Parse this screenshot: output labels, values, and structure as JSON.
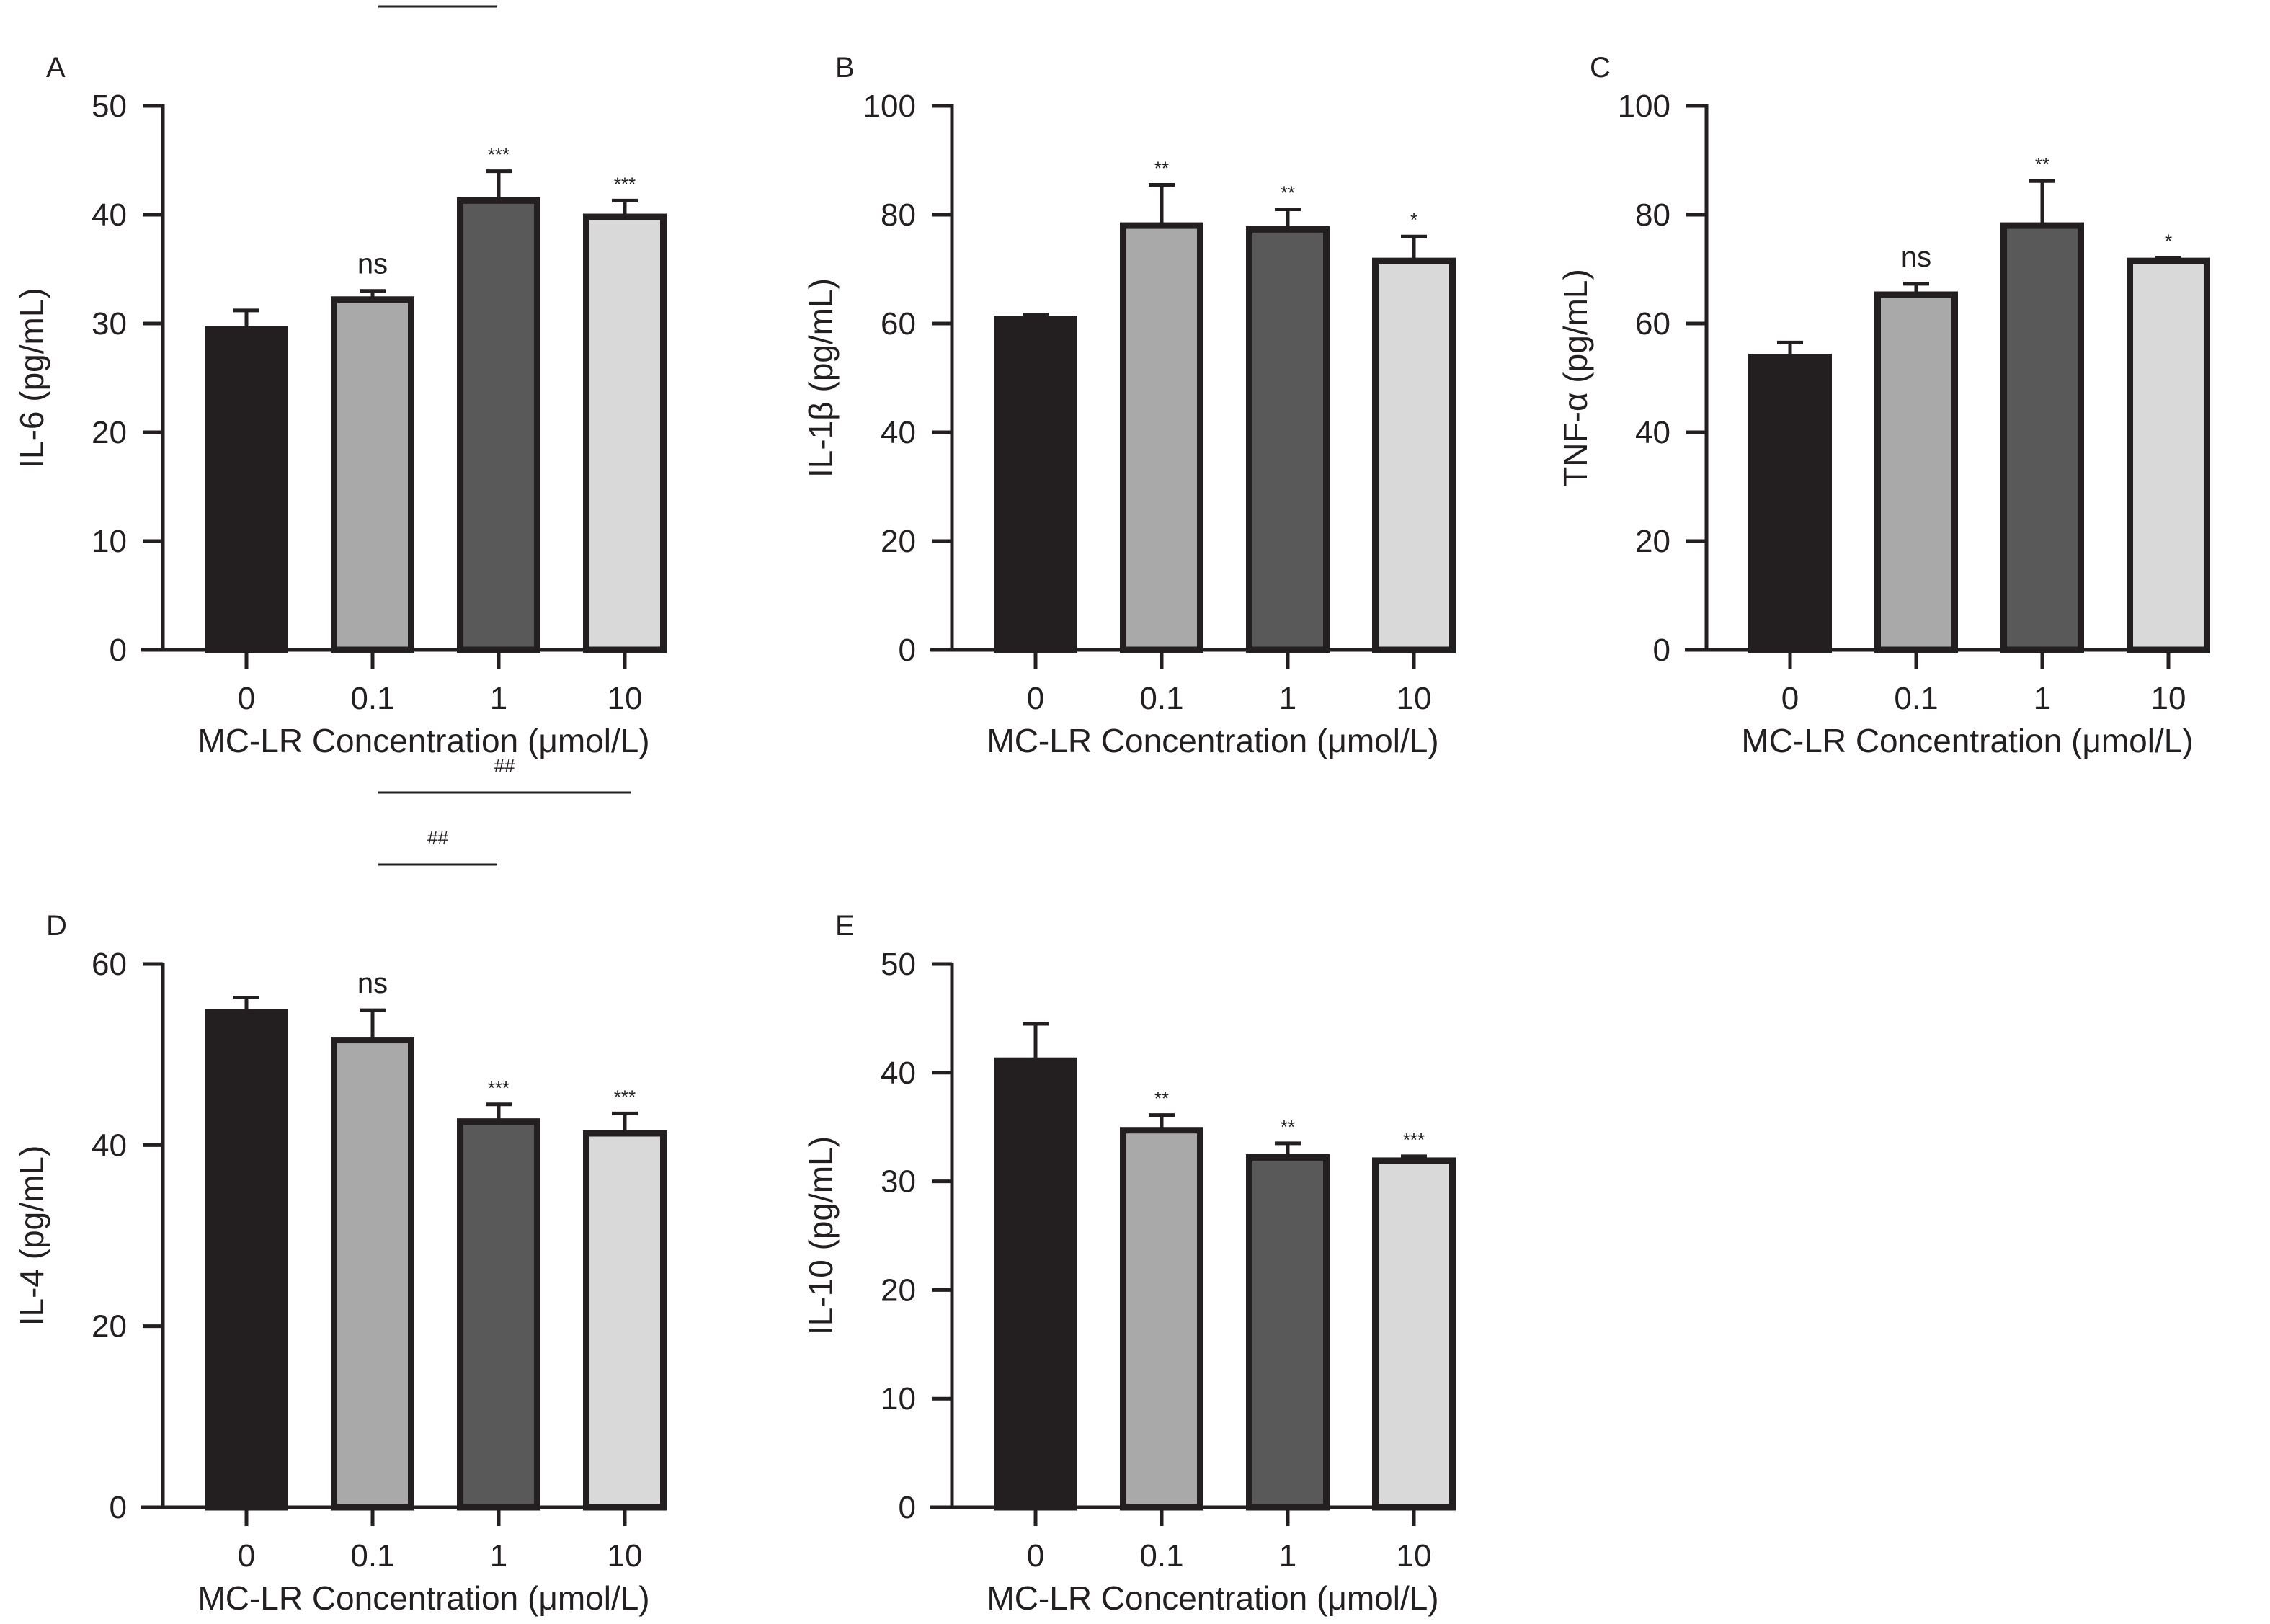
{
  "colors": {
    "axis": "#231f20",
    "bar_outline": "#231f20",
    "bar_fills": [
      "#231f20",
      "#aaa9a9",
      "#5a595a",
      "#d9d9d9"
    ]
  },
  "chart_data": [
    {
      "panel": "A",
      "type": "bar",
      "categories": [
        "0",
        "0.1",
        "1",
        "10"
      ],
      "values": [
        29.5,
        32.2,
        41.3,
        39.8
      ],
      "error": [
        1.7,
        0.8,
        2.7,
        1.5
      ],
      "significance": [
        "",
        "ns",
        "***",
        "***"
      ],
      "comparisons": [
        {
          "from": 1,
          "to": 2,
          "label": "##"
        },
        {
          "from": 1,
          "to": 3,
          "label": "##"
        }
      ],
      "xlabel": "MC-LR Concentration (μmol/L)",
      "ylabel": "IL-6 (pg/mL)",
      "ylim": [
        0,
        50
      ],
      "yticks": [
        0,
        10,
        20,
        30,
        40,
        50
      ]
    },
    {
      "panel": "B",
      "type": "bar",
      "categories": [
        "0",
        "0.1",
        "1",
        "10"
      ],
      "values": [
        60.8,
        78.0,
        77.3,
        71.5
      ],
      "error": [
        0.8,
        7.5,
        3.7,
        4.5
      ],
      "significance": [
        "",
        "**",
        "**",
        "*"
      ],
      "comparisons": [],
      "xlabel": "MC-LR Concentration (μmol/L)",
      "ylabel": "IL-1β (pg/mL)",
      "ylim": [
        0,
        100
      ],
      "yticks": [
        0,
        20,
        40,
        60,
        80,
        100
      ]
    },
    {
      "panel": "C",
      "type": "bar",
      "categories": [
        "0",
        "0.1",
        "1",
        "10"
      ],
      "values": [
        53.8,
        65.3,
        78.0,
        71.5
      ],
      "error": [
        2.7,
        2.0,
        8.2,
        0.6
      ],
      "significance": [
        "",
        "ns",
        "**",
        "*"
      ],
      "comparisons": [],
      "xlabel": "MC-LR Concentration (μmol/L)",
      "ylabel": "TNF-α (pg/mL)",
      "ylim": [
        0,
        100
      ],
      "yticks": [
        0,
        20,
        40,
        60,
        80,
        100
      ]
    },
    {
      "panel": "D",
      "type": "bar",
      "categories": [
        "0",
        "0.1",
        "1",
        "10"
      ],
      "values": [
        54.7,
        51.6,
        42.6,
        41.3
      ],
      "error": [
        1.6,
        3.3,
        1.9,
        2.2
      ],
      "significance": [
        "",
        "ns",
        "***",
        "***"
      ],
      "comparisons": [
        {
          "from": 1,
          "to": 2,
          "label": "##"
        },
        {
          "from": 1,
          "to": 3,
          "label": "##"
        }
      ],
      "xlabel": "MC-LR Concentration (μmol/L)",
      "ylabel": "IL-4 (pg/mL)",
      "ylim": [
        0,
        60
      ],
      "yticks": [
        0,
        20,
        40,
        60
      ]
    },
    {
      "panel": "E",
      "type": "bar",
      "categories": [
        "0",
        "0.1",
        "1",
        "10"
      ],
      "values": [
        41.1,
        34.7,
        32.2,
        31.9
      ],
      "error": [
        3.4,
        1.4,
        1.3,
        0.4
      ],
      "significance": [
        "",
        "**",
        "**",
        "***"
      ],
      "comparisons": [],
      "xlabel": "MC-LR Concentration (μmol/L)",
      "ylabel": "IL-10 (pg/mL)",
      "ylim": [
        0,
        50
      ],
      "yticks": [
        0,
        10,
        20,
        30,
        40,
        50
      ]
    }
  ]
}
